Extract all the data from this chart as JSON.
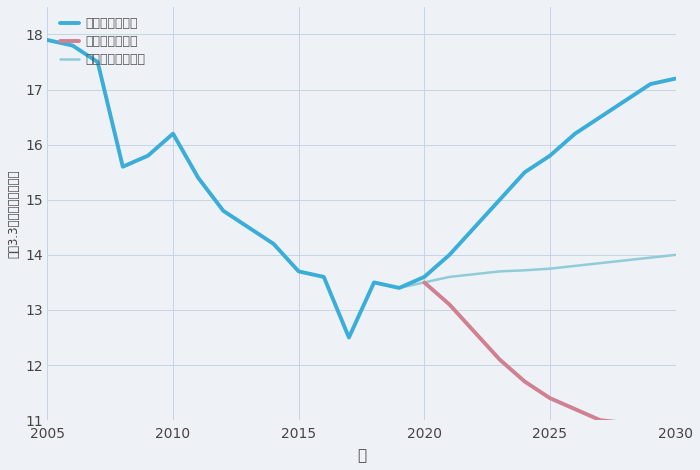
{
  "xlabel": "年",
  "ylabel": "坪（3.3㎡）単価（万円）",
  "background_color": "#eef2f7",
  "plot_background": "#eef2f7",
  "good_scenario": {
    "label": "グッドシナリオ",
    "color": "#3aaed8",
    "x": [
      2005,
      2006,
      2007,
      2008,
      2009,
      2010,
      2011,
      2012,
      2013,
      2014,
      2015,
      2016,
      2017,
      2018,
      2019,
      2020,
      2021,
      2022,
      2023,
      2024,
      2025,
      2026,
      2027,
      2028,
      2029,
      2030
    ],
    "y": [
      17.9,
      17.8,
      17.5,
      15.6,
      15.8,
      16.2,
      15.4,
      14.8,
      14.5,
      14.2,
      13.7,
      13.6,
      12.5,
      13.5,
      13.4,
      13.6,
      14.0,
      14.5,
      15.0,
      15.5,
      15.8,
      16.2,
      16.5,
      16.8,
      17.1,
      17.2
    ],
    "linewidth": 2.8
  },
  "bad_scenario": {
    "label": "バッドシナリオ",
    "color": "#d08090",
    "x": [
      2020,
      2021,
      2022,
      2023,
      2024,
      2025,
      2026,
      2027,
      2028,
      2029,
      2030
    ],
    "y": [
      13.5,
      13.1,
      12.6,
      12.1,
      11.7,
      11.4,
      11.2,
      11.0,
      10.95,
      10.92,
      10.9
    ],
    "linewidth": 2.8
  },
  "normal_scenario": {
    "label": "ノーマルシナリオ",
    "color": "#90ccd8",
    "x": [
      2005,
      2006,
      2007,
      2008,
      2009,
      2010,
      2011,
      2012,
      2013,
      2014,
      2015,
      2016,
      2017,
      2018,
      2019,
      2020,
      2021,
      2022,
      2023,
      2024,
      2025,
      2026,
      2027,
      2028,
      2029,
      2030
    ],
    "y": [
      17.9,
      17.8,
      17.5,
      15.6,
      15.8,
      16.2,
      15.4,
      14.8,
      14.5,
      14.2,
      13.7,
      13.6,
      12.5,
      13.5,
      13.4,
      13.5,
      13.6,
      13.65,
      13.7,
      13.72,
      13.75,
      13.8,
      13.85,
      13.9,
      13.95,
      14.0
    ],
    "linewidth": 1.8
  },
  "ylim": [
    11,
    18.5
  ],
  "xlim": [
    2005,
    2030
  ],
  "yticks": [
    11,
    12,
    13,
    14,
    15,
    16,
    17,
    18
  ],
  "xticks": [
    2005,
    2010,
    2015,
    2020,
    2025,
    2030
  ],
  "grid_color": "#c5d5e5",
  "title_fontsize": 18,
  "label_fontsize": 11,
  "legend_fontsize": 9,
  "tick_fontsize": 10
}
